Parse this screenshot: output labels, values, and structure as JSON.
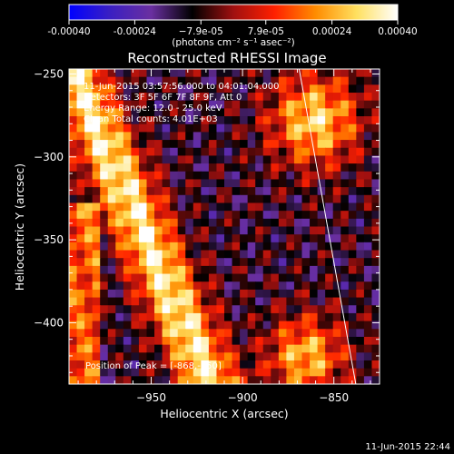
{
  "chart_data": {
    "type": "heatmap",
    "title": "Reconstructed RHESSI Image",
    "xlabel": "Heliocentric X (arcsec)",
    "ylabel": "Heliocentric Y (arcsec)",
    "xlim": [
      -995,
      -825
    ],
    "ylim": [
      -437,
      -247
    ],
    "xticks": [
      -950,
      -900,
      -850
    ],
    "yticks": [
      -250,
      -300,
      -350,
      -400
    ],
    "xtick_labels": [
      "−950",
      "−900",
      "−850"
    ],
    "ytick_labels": [
      "−250",
      "−300",
      "−350",
      "−400"
    ],
    "colorbar": {
      "ticks": [
        "-0.00040",
        "-0.00024",
        "−7.9e-05",
        "7.9e-05",
        "0.00024",
        "0.00040"
      ],
      "tick_values": [
        -0.0004,
        -0.00024,
        -7.9e-05,
        7.9e-05,
        0.00024,
        0.0004
      ],
      "units": "(photons cm⁻² s⁻¹ asec⁻²)",
      "range": [
        -0.0004,
        0.0004
      ],
      "colors": [
        "#0000ff",
        "#3a1fc2",
        "#6a2fa0",
        "#000000",
        "#a01010",
        "#ff2000",
        "#ff8c00",
        "#ffe060",
        "#ffffff"
      ]
    },
    "annotations": [
      "11-Jun-2015 03:57:56.000 to 04:01:04.000",
      "Detectors: 3F 5F 6F 7F 8F 9F, Att 0",
      "Energy Range: 12.0 - 25.0 keV",
      "Clean    Total counts: 4.01E+03"
    ],
    "peak_label": "Position of Peak = [-868,-250]",
    "peak_position": [
      -868,
      -250
    ],
    "limb_line": [
      [
        -869,
        -247
      ],
      [
        -838,
        -437
      ]
    ],
    "timestamp": "11-Jun-2015 22:44"
  }
}
